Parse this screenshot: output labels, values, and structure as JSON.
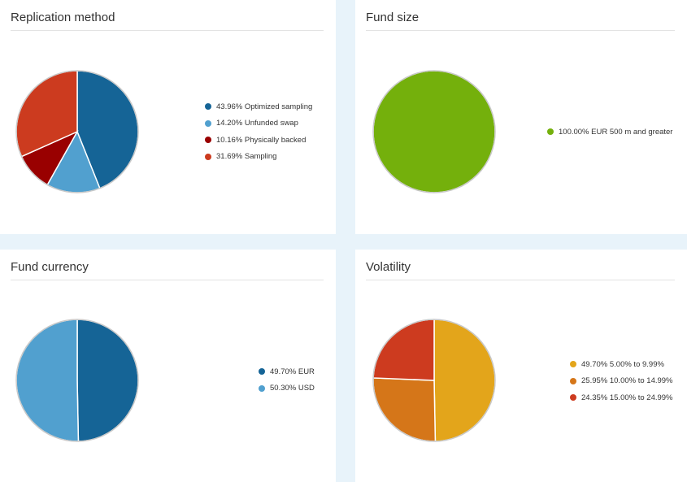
{
  "chart_data": [
    {
      "type": "pie",
      "title": "Replication method",
      "slices": [
        {
          "label": "43.96% Optimized sampling",
          "value": 43.96,
          "color": "#156496"
        },
        {
          "label": "14.20% Unfunded swap",
          "value": 14.2,
          "color": "#51a0cf"
        },
        {
          "label": "10.16% Physically backed",
          "value": 10.16,
          "color": "#990000"
        },
        {
          "label": "31.69% Sampling",
          "value": 31.69,
          "color": "#cc3b1f"
        }
      ],
      "legend_position": "right"
    },
    {
      "type": "pie",
      "title": "Fund size",
      "slices": [
        {
          "label": "100.00% EUR 500 m and greater",
          "value": 100.0,
          "color": "#74b00c"
        }
      ],
      "legend_position": "right"
    },
    {
      "type": "pie",
      "title": "Fund currency",
      "slices": [
        {
          "label": "49.70% EUR",
          "value": 49.7,
          "color": "#156496"
        },
        {
          "label": "50.30% USD",
          "value": 50.3,
          "color": "#51a0cf"
        }
      ],
      "legend_position": "right"
    },
    {
      "type": "pie",
      "title": "Volatility",
      "slices": [
        {
          "label": "49.70% 5.00% to 9.99%",
          "value": 49.7,
          "color": "#e3a51b"
        },
        {
          "label": "25.95% 10.00% to 14.99%",
          "value": 25.95,
          "color": "#d57619"
        },
        {
          "label": "24.35% 15.00% to 24.99%",
          "value": 24.35,
          "color": "#cd3b1f"
        }
      ],
      "legend_position": "right"
    }
  ]
}
